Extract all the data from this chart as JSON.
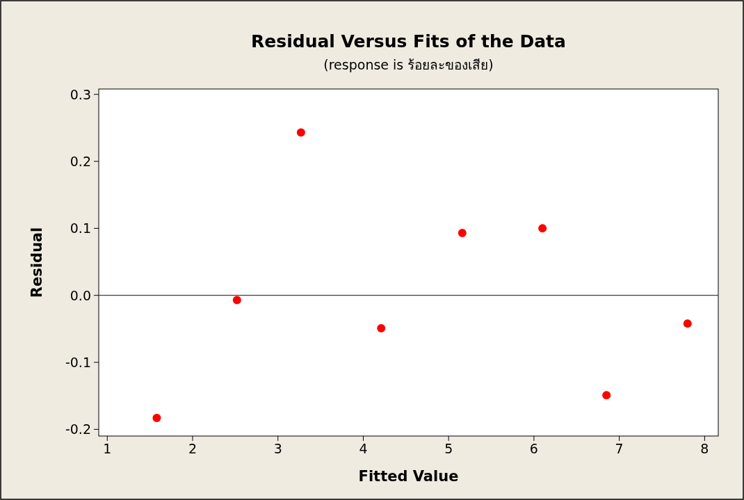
{
  "chart_data": {
    "type": "scatter",
    "title": "Residual Versus Fits of the Data",
    "subtitle": "(response is ร้อยละของเสีย)",
    "xlabel": "Fitted Value",
    "ylabel": "Residual",
    "x": [
      1.58,
      2.52,
      3.27,
      4.21,
      5.16,
      6.1,
      6.85,
      7.8
    ],
    "series": [
      {
        "color": "#ff0000",
        "values": [
          -0.183,
          -0.007,
          0.243,
          -0.049,
          0.093,
          0.1,
          -0.149,
          -0.042
        ]
      }
    ],
    "marker": "circle",
    "grid": false,
    "xlim": [
      0.9,
      8.16
    ],
    "ylim": [
      -0.21,
      0.308
    ],
    "xticks": [
      1,
      2,
      3,
      4,
      5,
      6,
      7,
      8
    ],
    "yticks": [
      {
        "value": -0.2,
        "label": "-0.2"
      },
      {
        "value": -0.1,
        "label": "-0.1"
      },
      {
        "value": 0,
        "label": "0.0"
      },
      {
        "value": 0.1,
        "label": "0.1"
      },
      {
        "value": 0.2,
        "label": "0.2"
      },
      {
        "value": 0.3,
        "label": "0.3"
      }
    ],
    "ref_lines": [
      {
        "axis": "y",
        "value": 0,
        "color": "#404040"
      }
    ]
  }
}
